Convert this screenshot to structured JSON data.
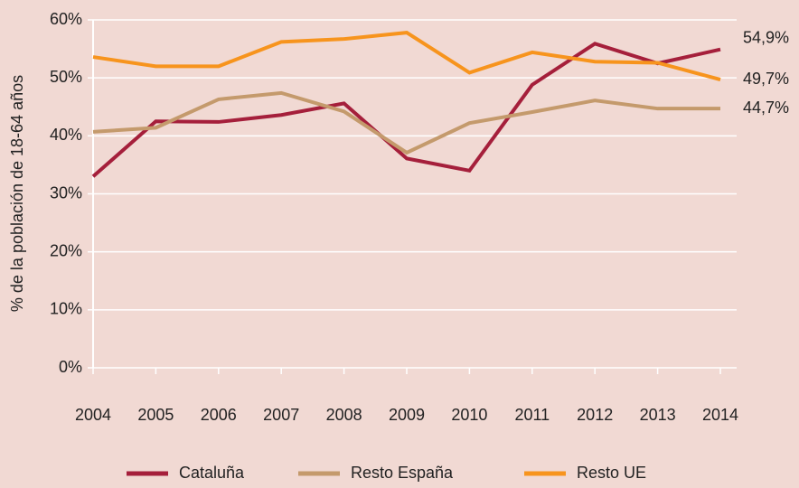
{
  "chart_data": {
    "type": "line",
    "y_axis_label": "% de la población de 18-64 años",
    "categories": [
      "2004",
      "2005",
      "2006",
      "2007",
      "2008",
      "2009",
      "2010",
      "2011",
      "2012",
      "2013",
      "2014"
    ],
    "series": [
      {
        "name": "Cataluña",
        "color": "#a51f3b",
        "values": [
          33.0,
          42.5,
          42.4,
          43.6,
          45.6,
          36.1,
          34.0,
          48.8,
          55.9,
          52.5,
          54.9
        ],
        "value_labels": [
          null,
          null,
          null,
          null,
          null,
          null,
          null,
          null,
          null,
          null,
          "54,9%"
        ]
      },
      {
        "name": "Resto España",
        "color": "#c49a6c",
        "values": [
          40.7,
          41.4,
          46.3,
          47.4,
          44.2,
          37.1,
          42.2,
          44.1,
          46.1,
          44.7,
          44.7
        ],
        "value_labels": [
          null,
          null,
          null,
          null,
          null,
          null,
          null,
          null,
          null,
          null,
          "44,7%"
        ]
      },
      {
        "name": "Resto UE",
        "color": "#f7941d",
        "values": [
          53.6,
          52.0,
          52.0,
          56.2,
          56.7,
          57.8,
          50.9,
          54.4,
          52.8,
          52.6,
          49.7
        ],
        "value_labels": [
          null,
          null,
          null,
          null,
          null,
          null,
          null,
          null,
          null,
          null,
          "49,7%"
        ]
      }
    ],
    "ylim": [
      0,
      60
    ],
    "yticks": [
      {
        "value": 0,
        "label": "0%"
      },
      {
        "value": 10,
        "label": "10%"
      },
      {
        "value": 20,
        "label": "20%"
      },
      {
        "value": 30,
        "label": "30%"
      },
      {
        "value": 40,
        "label": "40%"
      },
      {
        "value": 50,
        "label": "50%"
      },
      {
        "value": 60,
        "label": "60%"
      }
    ],
    "grid": true
  }
}
